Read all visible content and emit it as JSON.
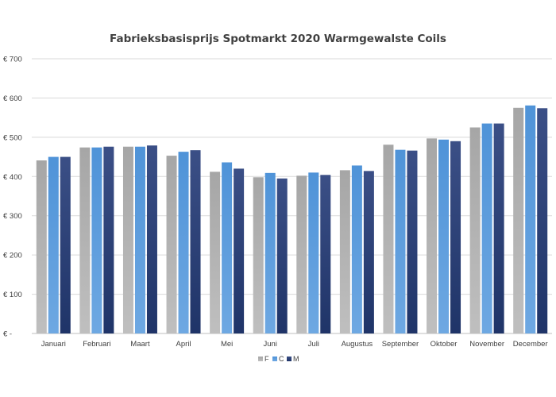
{
  "chart_data": {
    "type": "bar",
    "title": "Fabrieksbasisprijs Spotmarkt 2020  Warmgewalste Coils",
    "xlabel": "",
    "ylabel": "",
    "ylim": [
      0,
      700
    ],
    "yticks": [
      0,
      100,
      200,
      300,
      400,
      500,
      600,
      700
    ],
    "ytick_labels": [
      "€ -",
      "€ 100",
      "€ 200",
      "€ 300",
      "€ 400",
      "€ 500",
      "€ 600",
      "€ 700"
    ],
    "grid": true,
    "legend_position": "bottom",
    "categories": [
      "Januari",
      "Februari",
      "Maart",
      "April",
      "Mei",
      "Juni",
      "Juli",
      "Augustus",
      "September",
      "Oktober",
      "November",
      "December"
    ],
    "series": [
      {
        "name": "F",
        "color_top": "#a6a6a6",
        "color_bottom": "#bfbfbf",
        "values": [
          441,
          474,
          476,
          453,
          412,
          398,
          402,
          416,
          481,
          497,
          525,
          575
        ]
      },
      {
        "name": "C",
        "color_top": "#4f93d8",
        "color_bottom": "#6ea8e2",
        "values": [
          450,
          474,
          476,
          463,
          436,
          409,
          410,
          428,
          468,
          494,
          535,
          581
        ]
      },
      {
        "name": "M",
        "color_top": "#3b4f86",
        "color_bottom": "#1f3468",
        "values": [
          450,
          476,
          479,
          467,
          420,
          395,
          404,
          414,
          466,
          490,
          535,
          574
        ]
      }
    ]
  }
}
